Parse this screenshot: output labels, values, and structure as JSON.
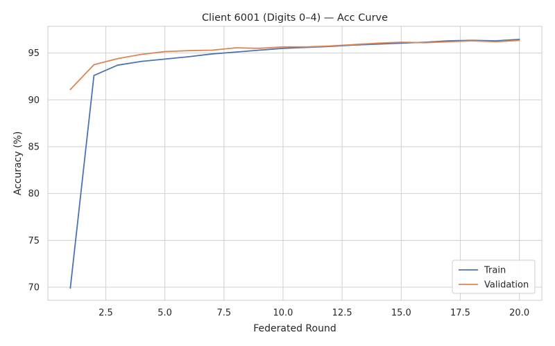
{
  "chart_data": {
    "type": "line",
    "title": "Client 6001 (Digits 0–4) — Acc Curve",
    "xlabel": "Federated Round",
    "ylabel": "Accuracy (%)",
    "xlim": [
      0.05,
      20.95
    ],
    "ylim": [
      68.6,
      97.85
    ],
    "xticks": [
      2.5,
      5.0,
      7.5,
      10.0,
      12.5,
      15.0,
      17.5,
      20.0
    ],
    "xtick_labels": [
      "2.5",
      "5.0",
      "7.5",
      "10.0",
      "12.5",
      "15.0",
      "17.5",
      "20.0"
    ],
    "yticks": [
      70,
      75,
      80,
      85,
      90,
      95
    ],
    "ytick_labels": [
      "70",
      "75",
      "80",
      "85",
      "90",
      "95"
    ],
    "grid": true,
    "legend_position": "bottom-right",
    "x": [
      1,
      2,
      3,
      4,
      5,
      6,
      7,
      8,
      9,
      10,
      11,
      12,
      13,
      14,
      15,
      16,
      17,
      18,
      19,
      20
    ],
    "series": [
      {
        "name": "Train",
        "color": "#4c72b0",
        "values": [
          69.9,
          92.6,
          93.7,
          94.1,
          94.35,
          94.6,
          94.9,
          95.1,
          95.3,
          95.5,
          95.6,
          95.7,
          95.85,
          95.95,
          96.05,
          96.15,
          96.3,
          96.35,
          96.3,
          96.45
        ]
      },
      {
        "name": "Validation",
        "color": "#dd8452",
        "values": [
          91.1,
          93.75,
          94.4,
          94.85,
          95.15,
          95.25,
          95.3,
          95.55,
          95.5,
          95.65,
          95.65,
          95.75,
          95.9,
          96.05,
          96.15,
          96.1,
          96.2,
          96.3,
          96.2,
          96.35
        ]
      }
    ]
  }
}
